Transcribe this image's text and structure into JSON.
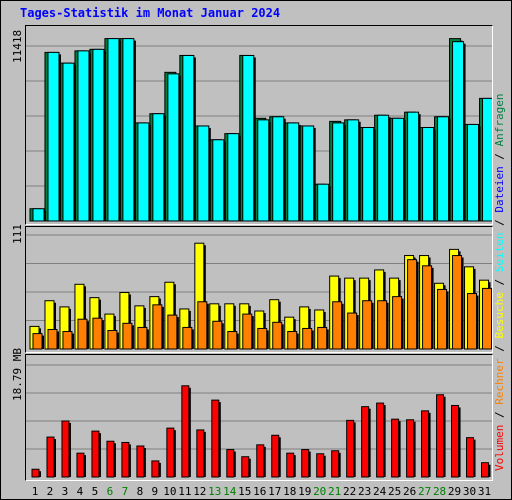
{
  "title": "Tages-Statistik im Monat Januar 2024",
  "legend": [
    {
      "label": "Volumen",
      "color": "#ff0000"
    },
    {
      "label": "Rechner",
      "color": "#ff8000"
    },
    {
      "label": "Besuche",
      "color": "#ffff00"
    },
    {
      "label": "Seiten",
      "color": "#00ffff"
    },
    {
      "label": "Dateien",
      "color": "#0000ff"
    },
    {
      "label": "Anfragen",
      "color": "#008040"
    }
  ],
  "legend_separator": " / ",
  "chart_data": {
    "type": "bar",
    "days": [
      1,
      2,
      3,
      4,
      5,
      6,
      7,
      8,
      9,
      10,
      11,
      12,
      13,
      14,
      15,
      16,
      17,
      18,
      19,
      20,
      21,
      22,
      23,
      24,
      25,
      26,
      27,
      28,
      29,
      30,
      31
    ],
    "weekend_days": [
      6,
      7,
      13,
      14,
      20,
      21,
      27,
      28
    ],
    "panels": [
      {
        "name": "hits",
        "ymax_label": "11418",
        "ymax": 11418,
        "series": [
          {
            "name": "Anfragen",
            "color": "#008040",
            "values": [
              800,
              11000,
              10300,
              11100,
              11200,
              11900,
              11900,
              6400,
              7000,
              9700,
              10800,
              6200,
              5300,
              5700,
              10800,
              6700,
              6800,
              6400,
              6200,
              2400,
              6500,
              6600,
              6100,
              6900,
              6700,
              7100,
              6100,
              6800,
              11900,
              6300,
              8000
            ]
          },
          {
            "name": "Seiten",
            "color": "#00ffff",
            "values": [
              800,
              11000,
              10300,
              11100,
              11200,
              11900,
              11900,
              6400,
              7000,
              9600,
              10800,
              6200,
              5300,
              5700,
              10800,
              6600,
              6800,
              6400,
              6200,
              2400,
              6400,
              6600,
              6100,
              6900,
              6700,
              7100,
              6100,
              6800,
              11700,
              6300,
              8000
            ]
          }
        ]
      },
      {
        "name": "visits",
        "ymax_label": "111",
        "ymax": 111,
        "series": [
          {
            "name": "Besuche",
            "color": "#ffff00",
            "values": [
              22,
              47,
              41,
              63,
              50,
              34,
              55,
              42,
              51,
              65,
              39,
              103,
              44,
              44,
              44,
              37,
              48,
              31,
              41,
              38,
              71,
              69,
              69,
              77,
              69,
              91,
              91,
              64,
              97,
              80,
              67
            ]
          },
          {
            "name": "Rechner",
            "color": "#ff8000",
            "values": [
              15,
              19,
              17,
              29,
              30,
              18,
              25,
              21,
              43,
              33,
              21,
              46,
              27,
              17,
              34,
              20,
              26,
              17,
              20,
              21,
              46,
              35,
              47,
              47,
              51,
              87,
              81,
              58,
              91,
              54,
              59
            ]
          }
        ]
      },
      {
        "name": "volume",
        "ymax_label": "18.79 MB",
        "ymax": 18.79,
        "series": [
          {
            "name": "Volumen",
            "color": "#ff0000",
            "values": [
              1.3,
              6.7,
              9.4,
              4.0,
              7.7,
              6.0,
              5.8,
              5.2,
              2.7,
              8.2,
              15.3,
              7.9,
              12.9,
              4.6,
              3.4,
              5.4,
              7.0,
              4.0,
              4.6,
              3.9,
              4.4,
              9.5,
              11.8,
              12.4,
              9.7,
              9.6,
              11.1,
              13.8,
              12.0,
              6.6,
              2.4
            ]
          }
        ]
      }
    ]
  }
}
